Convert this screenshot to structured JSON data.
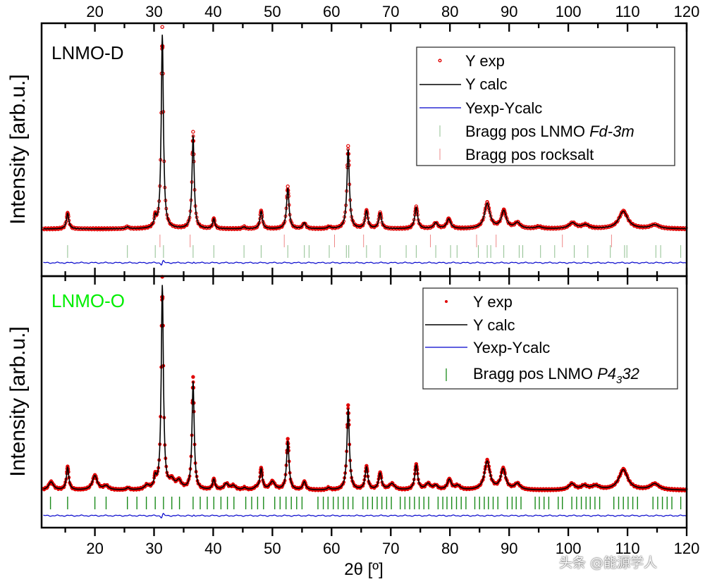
{
  "chart_data": [
    {
      "type": "line",
      "panel": "top",
      "title": "LNMO-D",
      "title_color": "#000000",
      "xlabel": "2θ [º]",
      "ylabel": "Intensity [arb.u.]",
      "xlim": [
        11,
        120
      ],
      "x_ticks": [
        20,
        30,
        40,
        50,
        60,
        70,
        80,
        90,
        100,
        110,
        120
      ],
      "y_ticks_labeled": false,
      "grid": false,
      "legend_position": "upper right",
      "legend": [
        {
          "label": "Y exp",
          "style": "red open circle"
        },
        {
          "label": "Y calc",
          "style": "black line"
        },
        {
          "label": "Yexp-Ycalc",
          "style": "blue line"
        },
        {
          "label": "Bragg pos LNMO ",
          "italic_suffix": "Fd-3m",
          "style": "green tick"
        },
        {
          "label": "Bragg pos rocksalt",
          "style": "pink tick"
        }
      ],
      "background": 0.0,
      "peaks": [
        {
          "x": 15.4,
          "h": 0.08,
          "w": 0.25
        },
        {
          "x": 25.5,
          "h": 0.01,
          "w": 0.3
        },
        {
          "x": 30.2,
          "h": 0.05,
          "w": 0.2
        },
        {
          "x": 31.4,
          "h": 1.0,
          "w": 0.22
        },
        {
          "x": 36.6,
          "h": 0.48,
          "w": 0.22
        },
        {
          "x": 40.1,
          "h": 0.05,
          "w": 0.22
        },
        {
          "x": 45.2,
          "h": 0.01,
          "w": 0.25
        },
        {
          "x": 48.1,
          "h": 0.09,
          "w": 0.25
        },
        {
          "x": 52.6,
          "h": 0.21,
          "w": 0.25
        },
        {
          "x": 55.4,
          "h": 0.03,
          "w": 0.3
        },
        {
          "x": 59.6,
          "h": 0.01,
          "w": 0.3
        },
        {
          "x": 62.8,
          "h": 0.41,
          "w": 0.25
        },
        {
          "x": 65.9,
          "h": 0.09,
          "w": 0.28
        },
        {
          "x": 68.2,
          "h": 0.08,
          "w": 0.28
        },
        {
          "x": 74.3,
          "h": 0.11,
          "w": 0.3
        },
        {
          "x": 77.6,
          "h": 0.03,
          "w": 0.4
        },
        {
          "x": 79.8,
          "h": 0.05,
          "w": 0.4
        },
        {
          "x": 86.3,
          "h": 0.13,
          "w": 0.55
        },
        {
          "x": 89.1,
          "h": 0.09,
          "w": 0.5
        },
        {
          "x": 91.4,
          "h": 0.03,
          "w": 0.55
        },
        {
          "x": 95.0,
          "h": 0.01,
          "w": 0.6
        },
        {
          "x": 100.7,
          "h": 0.03,
          "w": 0.7
        },
        {
          "x": 102.9,
          "h": 0.02,
          "w": 0.7
        },
        {
          "x": 109.3,
          "h": 0.09,
          "w": 0.9
        },
        {
          "x": 114.6,
          "h": 0.02,
          "w": 0.9
        }
      ],
      "bragg_fd3m": [
        15.4,
        25.5,
        30.2,
        31.6,
        36.6,
        40.1,
        45.2,
        48.1,
        52.6,
        55.4,
        56.2,
        59.6,
        62.5,
        62.9,
        65.9,
        68.2,
        72.6,
        74.3,
        77.6,
        80.1,
        81.2,
        84.8,
        86.3,
        86.9,
        89.1,
        91.7,
        92.3,
        95.3,
        97.7,
        101.0,
        103.3,
        107.1,
        109.5,
        109.9,
        114.8,
        115.6,
        119.0
      ],
      "bragg_rocksalt": [
        31.0,
        36.1,
        52.0,
        60.5,
        65.4,
        76.7,
        84.5,
        87.8,
        99.0,
        107.3
      ]
    },
    {
      "type": "line",
      "panel": "bottom",
      "title": "LNMO-O",
      "title_color": "#00ee00",
      "xlabel": "2θ [º]",
      "ylabel": "Intensity [arb.u.]",
      "xlim": [
        11,
        120
      ],
      "x_ticks": [
        20,
        30,
        40,
        50,
        60,
        70,
        80,
        90,
        100,
        110,
        120
      ],
      "y_ticks_labeled": false,
      "grid": false,
      "legend_position": "upper right",
      "legend": [
        {
          "label": "Y exp",
          "style": "red filled circle"
        },
        {
          "label": "Y calc",
          "style": "black line"
        },
        {
          "label": "Yexp-Ycalc",
          "style": "blue line"
        },
        {
          "label": "Bragg pos LNMO ",
          "italic_suffix": "P4",
          "subscript": "3",
          "italic_tail": "32",
          "style": "green tick"
        }
      ],
      "peaks": [
        {
          "x": 12.6,
          "h": 0.04,
          "w": 0.5
        },
        {
          "x": 15.4,
          "h": 0.11,
          "w": 0.25
        },
        {
          "x": 20.0,
          "h": 0.07,
          "w": 0.5
        },
        {
          "x": 21.9,
          "h": 0.02,
          "w": 0.5
        },
        {
          "x": 25.6,
          "h": 0.01,
          "w": 0.3
        },
        {
          "x": 28.8,
          "h": 0.02,
          "w": 0.45
        },
        {
          "x": 30.2,
          "h": 0.05,
          "w": 0.22
        },
        {
          "x": 31.4,
          "h": 1.0,
          "w": 0.22
        },
        {
          "x": 33.0,
          "h": 0.04,
          "w": 0.5
        },
        {
          "x": 34.2,
          "h": 0.04,
          "w": 0.5
        },
        {
          "x": 36.6,
          "h": 0.53,
          "w": 0.22
        },
        {
          "x": 40.1,
          "h": 0.05,
          "w": 0.25
        },
        {
          "x": 42.2,
          "h": 0.03,
          "w": 0.45
        },
        {
          "x": 43.4,
          "h": 0.02,
          "w": 0.45
        },
        {
          "x": 45.3,
          "h": 0.01,
          "w": 0.3
        },
        {
          "x": 47.3,
          "h": 0.01,
          "w": 0.45
        },
        {
          "x": 48.1,
          "h": 0.1,
          "w": 0.25
        },
        {
          "x": 50.0,
          "h": 0.04,
          "w": 0.5
        },
        {
          "x": 52.6,
          "h": 0.24,
          "w": 0.25
        },
        {
          "x": 55.4,
          "h": 0.04,
          "w": 0.3
        },
        {
          "x": 59.5,
          "h": 0.01,
          "w": 0.3
        },
        {
          "x": 62.8,
          "h": 0.4,
          "w": 0.25
        },
        {
          "x": 65.9,
          "h": 0.11,
          "w": 0.28
        },
        {
          "x": 68.2,
          "h": 0.08,
          "w": 0.3
        },
        {
          "x": 70.2,
          "h": 0.03,
          "w": 0.55
        },
        {
          "x": 74.3,
          "h": 0.12,
          "w": 0.3
        },
        {
          "x": 76.3,
          "h": 0.03,
          "w": 0.5
        },
        {
          "x": 77.6,
          "h": 0.02,
          "w": 0.4
        },
        {
          "x": 79.9,
          "h": 0.05,
          "w": 0.4
        },
        {
          "x": 81.3,
          "h": 0.02,
          "w": 0.5
        },
        {
          "x": 86.3,
          "h": 0.14,
          "w": 0.55
        },
        {
          "x": 89.0,
          "h": 0.1,
          "w": 0.5
        },
        {
          "x": 91.4,
          "h": 0.03,
          "w": 0.55
        },
        {
          "x": 100.6,
          "h": 0.03,
          "w": 0.6
        },
        {
          "x": 102.7,
          "h": 0.02,
          "w": 0.6
        },
        {
          "x": 104.6,
          "h": 0.02,
          "w": 0.8
        },
        {
          "x": 109.3,
          "h": 0.1,
          "w": 0.9
        },
        {
          "x": 114.6,
          "h": 0.03,
          "w": 0.9
        }
      ],
      "bragg_p4332": [
        12.5,
        15.4,
        20.0,
        21.9,
        25.5,
        27.1,
        28.7,
        30.2,
        31.6,
        33.0,
        34.3,
        36.6,
        37.8,
        39.0,
        40.1,
        41.3,
        42.4,
        43.5,
        45.5,
        46.5,
        47.5,
        48.5,
        50.4,
        51.3,
        52.3,
        53.2,
        54.1,
        55.0,
        57.7,
        58.6,
        59.4,
        60.3,
        61.1,
        62.0,
        62.8,
        63.6,
        65.3,
        66.1,
        66.9,
        67.7,
        68.5,
        69.3,
        70.1,
        71.6,
        72.4,
        73.2,
        74.0,
        74.8,
        75.6,
        76.4,
        78.0,
        78.8,
        79.5,
        80.3,
        81.1,
        81.9,
        82.7,
        84.2,
        85.0,
        85.8,
        86.5,
        87.3,
        88.1,
        89.7,
        90.5,
        91.2,
        92.0,
        94.4,
        95.1,
        95.9,
        96.7,
        98.3,
        99.0,
        100.6,
        101.4,
        102.2,
        103.0,
        103.7,
        104.5,
        105.3,
        107.7,
        108.5,
        109.3,
        110.1,
        110.9,
        111.7,
        114.3,
        115.1,
        115.9,
        116.7,
        117.5,
        119.0,
        120.0
      ]
    }
  ],
  "figure": {
    "top_axis_ticks": [
      "20",
      "30",
      "40",
      "50",
      "60",
      "70",
      "80",
      "90",
      "100",
      "110",
      "120"
    ],
    "bottom_axis_ticks": [
      "20",
      "30",
      "40",
      "50",
      "60",
      "70",
      "80",
      "90",
      "100",
      "110",
      "120"
    ],
    "xlabel": "2θ [º]",
    "ylabel_top": "Intensity [arb.u.]",
    "ylabel_bottom": "Intensity [arb.u.]",
    "panel_top_label": "LNMO-D",
    "panel_bottom_label": "LNMO-O",
    "colors": {
      "exp": "#e00000",
      "calc": "#000000",
      "diff": "#0000cc",
      "bragg_main": "#1a8a1a",
      "bragg_main_light": "#8fbf8f",
      "bragg_rocksalt": "#ee8888",
      "label_o": "#00ee00"
    },
    "legend_top": {
      "items": [
        "Y exp",
        "Y calc",
        "Yexp-Ycalc",
        "Bragg pos LNMO ",
        "Bragg pos rocksalt"
      ],
      "fd3m": "Fd-3m"
    },
    "legend_bottom": {
      "items": [
        "Y exp",
        "Y calc",
        "Yexp-Ycalc",
        "Bragg pos LNMO "
      ],
      "p_prefix": "P4",
      "p_sub": "3",
      "p_tail": "32"
    }
  },
  "watermark": "头条 @能源学人"
}
